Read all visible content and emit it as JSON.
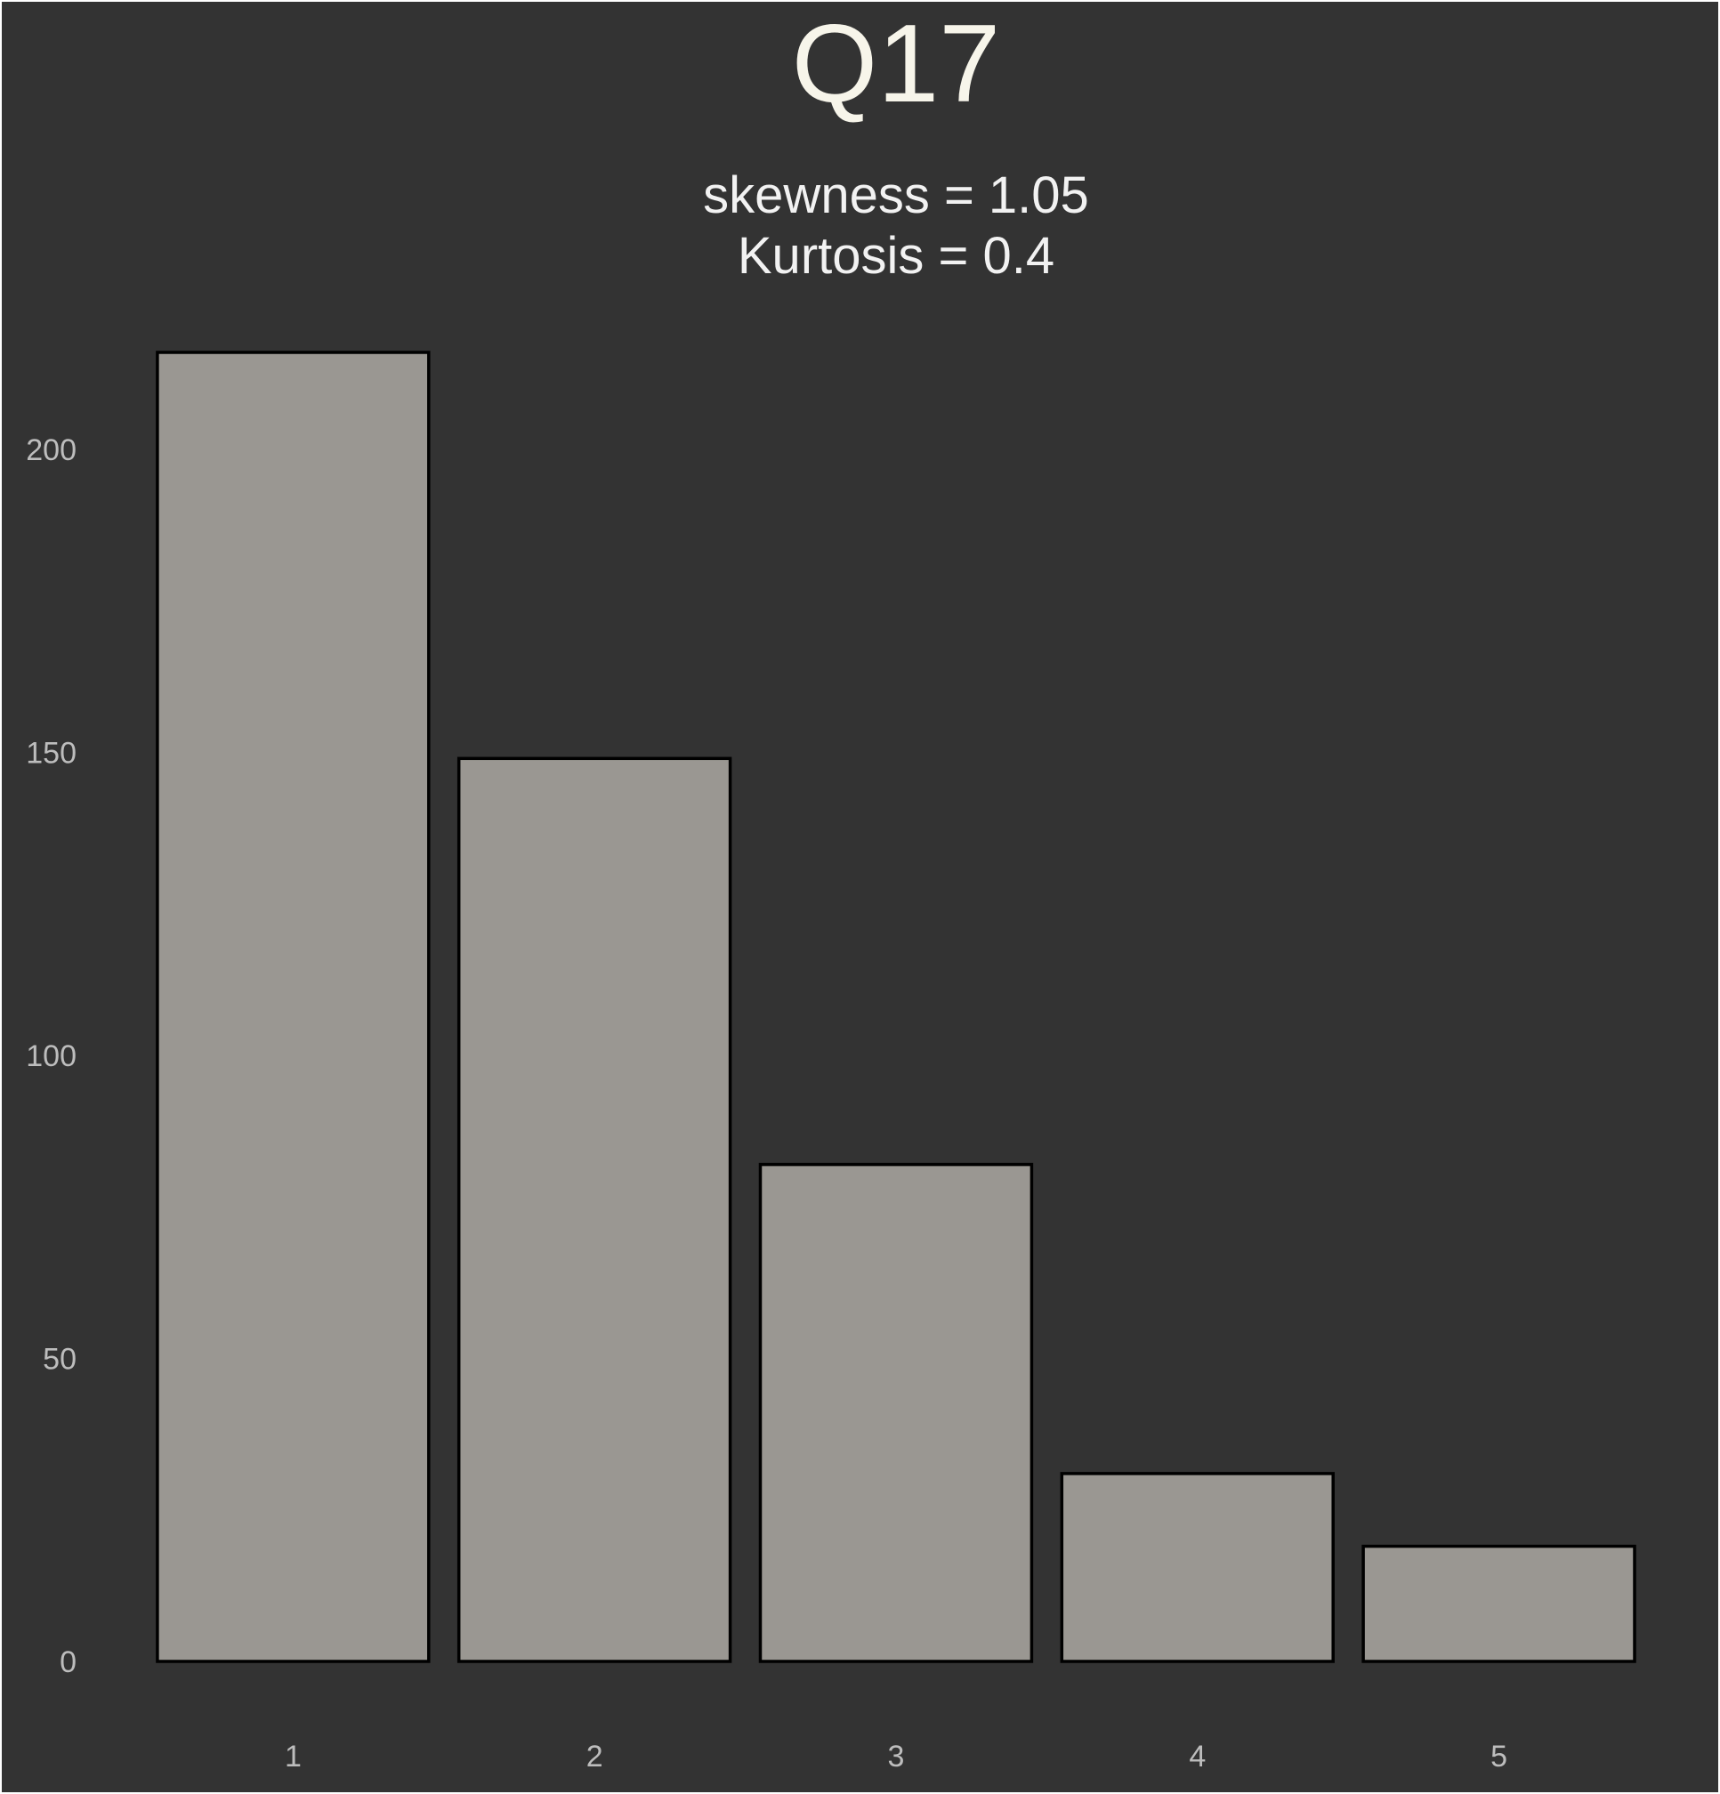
{
  "chart_data": {
    "type": "bar",
    "title": "Q17",
    "subtitle_lines": [
      "skewness = 1.05",
      "Kurtosis = 0.4"
    ],
    "xlabel": "",
    "ylabel": "",
    "categories": [
      "1",
      "2",
      "3",
      "4",
      "5"
    ],
    "values": [
      216,
      149,
      82,
      31,
      19
    ],
    "ylim": [
      0,
      216
    ],
    "y_ticks": [
      0,
      50,
      100,
      150,
      200
    ],
    "grid": false,
    "legend": "none",
    "colors": {
      "background": "#333333",
      "bar_fill": "#9a9792",
      "bar_stroke": "#000000",
      "title": "#f7f5ea",
      "tick_text": "#bdbdbd"
    }
  }
}
